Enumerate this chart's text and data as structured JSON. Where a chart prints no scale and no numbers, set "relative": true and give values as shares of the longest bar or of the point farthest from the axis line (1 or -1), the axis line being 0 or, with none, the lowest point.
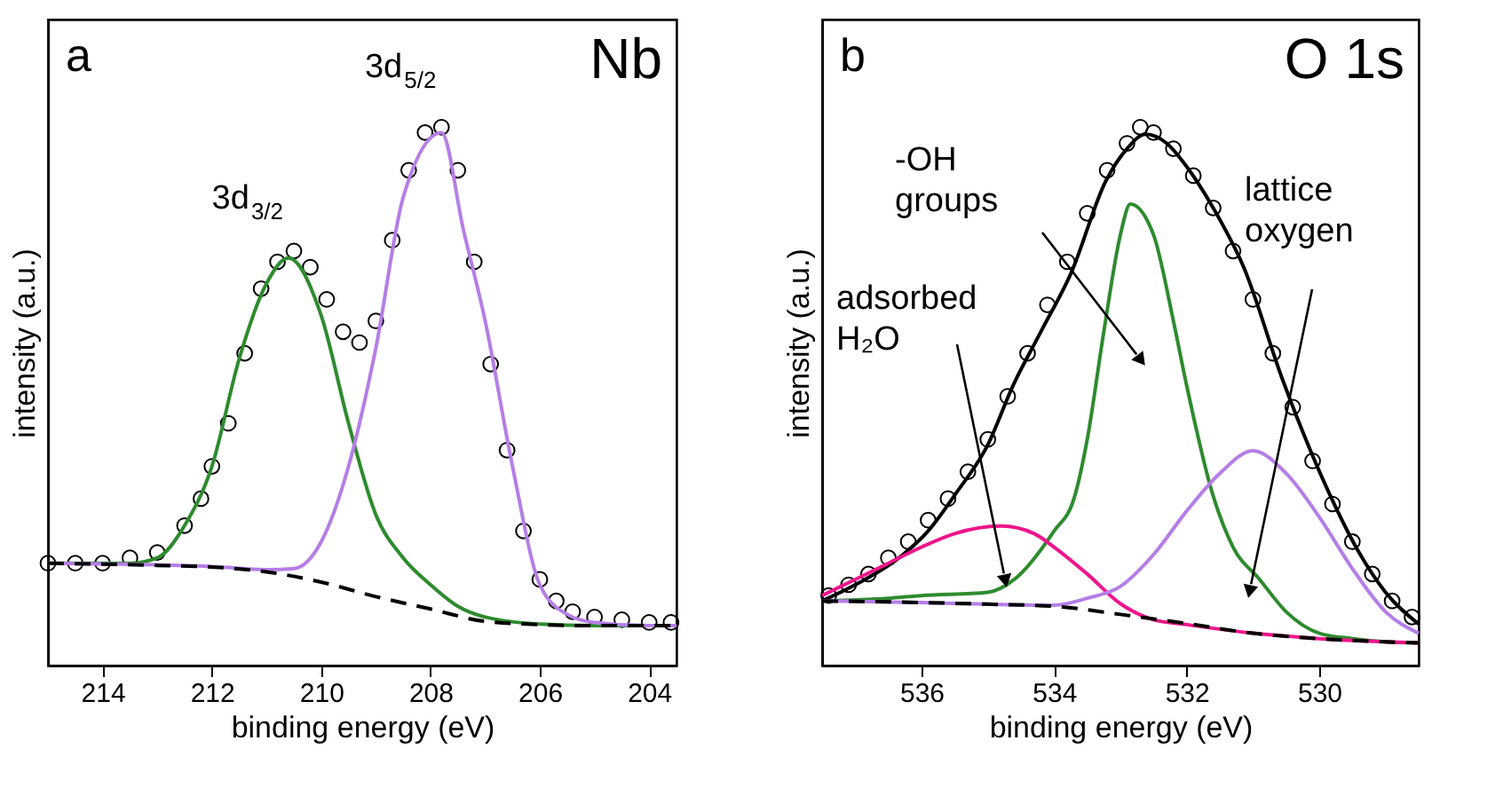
{
  "chart_data": [
    {
      "type": "line",
      "relative": true,
      "xlabel": "binding energy (eV)",
      "ylabel": "intensity (a.u.)",
      "xlim": [
        215,
        203.5
      ],
      "xticks": [
        214,
        212,
        210,
        208,
        206,
        204
      ],
      "annotations": [
        "a",
        "Nb",
        {
          "text": "3d$_{3/2}$",
          "x": 210.6,
          "y": 0.757
        },
        {
          "text": "3d$_{5/2}$",
          "x": 207.8,
          "y": 1.0
        }
      ],
      "series": [
        {
          "type": "scatter",
          "marker": "circle",
          "color": "#000000",
          "x": [
            215,
            214.5,
            214,
            213.5,
            213,
            212.5,
            212.2,
            212,
            211.7,
            211.4,
            211.1,
            210.8,
            210.5,
            210.2,
            209.9,
            209.6,
            209.3,
            209.0,
            208.7,
            208.4,
            208.1,
            207.8,
            207.5,
            207.2,
            206.9,
            206.6,
            206.3,
            206,
            205.7,
            205.4,
            205,
            204.5,
            204,
            203.6
          ],
          "values": [
            0.19,
            0.19,
            0.19,
            0.2,
            0.21,
            0.26,
            0.31,
            0.37,
            0.45,
            0.58,
            0.7,
            0.75,
            0.77,
            0.74,
            0.68,
            0.62,
            0.6,
            0.64,
            0.79,
            0.92,
            0.99,
            1.0,
            0.92,
            0.75,
            0.56,
            0.4,
            0.25,
            0.16,
            0.12,
            0.1,
            0.09,
            0.085,
            0.08,
            0.08
          ]
        },
        {
          "color": "#2e8b2e",
          "x": [
            215,
            213.5,
            213,
            212.5,
            212,
            211.5,
            211,
            210.6,
            210,
            209.5,
            209,
            208.5,
            208,
            207.5,
            207,
            206,
            205,
            203.5
          ],
          "values": [
            0.19,
            0.19,
            0.2,
            0.26,
            0.37,
            0.57,
            0.71,
            0.757,
            0.65,
            0.45,
            0.28,
            0.2,
            0.15,
            0.11,
            0.09,
            0.077,
            0.074,
            0.074
          ]
        },
        {
          "color": "#b57ee6",
          "x": [
            215,
            213,
            212,
            211,
            210.5,
            210,
            209.5,
            209,
            208.5,
            207.8,
            207.4,
            207,
            206.5,
            206,
            205.5,
            205,
            204,
            203.5
          ],
          "values": [
            0.19,
            0.187,
            0.184,
            0.178,
            0.18,
            0.23,
            0.37,
            0.59,
            0.87,
            0.99,
            0.81,
            0.64,
            0.37,
            0.15,
            0.095,
            0.08,
            0.074,
            0.074
          ]
        },
        {
          "color": "#000000",
          "line_style": "dashed",
          "x": [
            215,
            213,
            212,
            211,
            210,
            209,
            208,
            207,
            206,
            205,
            203.5
          ],
          "values": [
            0.19,
            0.186,
            0.183,
            0.174,
            0.155,
            0.128,
            0.105,
            0.082,
            0.076,
            0.074,
            0.074
          ]
        }
      ]
    },
    {
      "type": "line",
      "relative": true,
      "xlabel": "binding energy (eV)",
      "ylabel": "intensity (a.u.)",
      "xlim": [
        537.5,
        528.5
      ],
      "xticks": [
        536,
        534,
        532,
        530
      ],
      "annotations": [
        "b",
        "O 1s",
        "adsorbed H₂O",
        "-OH groups",
        "lattice oxygen"
      ],
      "series": [
        {
          "type": "scatter",
          "marker": "circle",
          "color": "#000000",
          "x": [
            537.4,
            537.1,
            536.8,
            536.5,
            536.2,
            535.9,
            535.6,
            535.3,
            535.0,
            534.7,
            534.4,
            534.1,
            533.8,
            533.5,
            533.2,
            532.9,
            532.7,
            532.5,
            532.2,
            531.9,
            531.6,
            531.3,
            531.0,
            530.7,
            530.4,
            530.1,
            529.8,
            529.5,
            529.2,
            528.9,
            528.6
          ],
          "values": [
            0.13,
            0.15,
            0.17,
            0.2,
            0.23,
            0.27,
            0.31,
            0.36,
            0.42,
            0.5,
            0.58,
            0.67,
            0.75,
            0.84,
            0.92,
            0.97,
            1.0,
            0.99,
            0.96,
            0.91,
            0.85,
            0.77,
            0.68,
            0.58,
            0.48,
            0.38,
            0.3,
            0.23,
            0.17,
            0.12,
            0.09
          ]
        },
        {
          "color": "#000000",
          "x": [
            537.5,
            537,
            536.34,
            535.9,
            535.48,
            535,
            534.62,
            534.2,
            533.74,
            533.22,
            532.9,
            532.62,
            532.3,
            532.02,
            531.6,
            531.14,
            530.55,
            529.85,
            529.4,
            529,
            528.5
          ],
          "values": [
            0.12,
            0.15,
            0.2,
            0.25,
            0.32,
            0.41,
            0.52,
            0.62,
            0.73,
            0.9,
            0.96,
            0.987,
            0.97,
            0.93,
            0.85,
            0.74,
            0.53,
            0.32,
            0.21,
            0.136,
            0.077
          ]
        },
        {
          "color": "#2e8b2e",
          "x": [
            537.5,
            536.5,
            536,
            535,
            534.6,
            534,
            533.7,
            533.5,
            533.25,
            533,
            532.85,
            532.5,
            532.2,
            532,
            531.6,
            531.3,
            530.9,
            530.5,
            530,
            529.5,
            529,
            528.5
          ],
          "values": [
            0.12,
            0.125,
            0.13,
            0.136,
            0.16,
            0.25,
            0.31,
            0.42,
            0.62,
            0.8,
            0.857,
            0.8,
            0.64,
            0.52,
            0.315,
            0.22,
            0.16,
            0.1,
            0.06,
            0.05,
            0.044,
            0.042
          ]
        },
        {
          "color": "#f0148c",
          "x": [
            537.5,
            537,
            536.5,
            536,
            535.5,
            534.8,
            534.3,
            534,
            533.5,
            533,
            532.5,
            532,
            531,
            530,
            529,
            528.5
          ],
          "values": [
            0.13,
            0.16,
            0.19,
            0.22,
            0.245,
            0.259,
            0.245,
            0.22,
            0.17,
            0.115,
            0.085,
            0.076,
            0.06,
            0.05,
            0.044,
            0.042
          ]
        },
        {
          "color": "#b57ee6",
          "x": [
            537.5,
            536,
            535,
            534,
            533.5,
            533,
            532.5,
            532,
            531.5,
            531,
            530.5,
            530,
            529.5,
            529,
            528.5
          ],
          "values": [
            0.12,
            0.117,
            0.114,
            0.112,
            0.125,
            0.147,
            0.206,
            0.287,
            0.357,
            0.399,
            0.357,
            0.276,
            0.18,
            0.1,
            0.06
          ]
        },
        {
          "color": "#000000",
          "line_style": "dashed",
          "x": [
            537.5,
            536,
            535,
            534,
            533,
            532,
            531,
            530,
            529,
            528.5
          ],
          "values": [
            0.12,
            0.117,
            0.114,
            0.11,
            0.095,
            0.078,
            0.06,
            0.05,
            0.044,
            0.042
          ]
        }
      ]
    }
  ]
}
